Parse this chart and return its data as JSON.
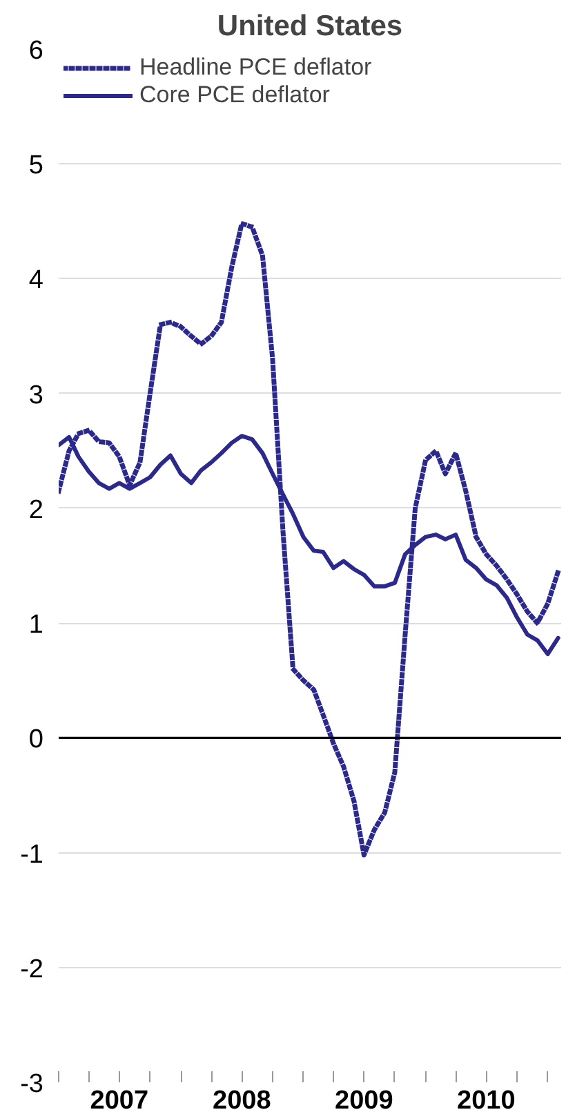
{
  "chart_data": {
    "type": "line",
    "title": "United States",
    "x": [
      "2007-01",
      "2007-02",
      "2007-03",
      "2007-04",
      "2007-05",
      "2007-06",
      "2007-07",
      "2007-08",
      "2007-09",
      "2007-10",
      "2007-11",
      "2007-12",
      "2008-01",
      "2008-02",
      "2008-03",
      "2008-04",
      "2008-05",
      "2008-06",
      "2008-07",
      "2008-08",
      "2008-09",
      "2008-10",
      "2008-11",
      "2008-12",
      "2009-01",
      "2009-02",
      "2009-03",
      "2009-04",
      "2009-05",
      "2009-06",
      "2009-07",
      "2009-08",
      "2009-09",
      "2009-10",
      "2009-11",
      "2009-12",
      "2010-01",
      "2010-02",
      "2010-03",
      "2010-04",
      "2010-05",
      "2010-06",
      "2010-07",
      "2010-08",
      "2010-09",
      "2010-10",
      "2010-11",
      "2010-12",
      "2011-01",
      "2011-02"
    ],
    "series": [
      {
        "name": "Headline PCE deflator",
        "color": "#2b2a8c",
        "line_style": "dotted",
        "values": [
          2.15,
          2.5,
          2.65,
          2.68,
          2.58,
          2.57,
          2.45,
          2.2,
          2.4,
          3.0,
          3.6,
          3.62,
          3.58,
          3.5,
          3.43,
          3.5,
          3.62,
          4.1,
          4.48,
          4.45,
          4.2,
          3.3,
          1.8,
          0.6,
          0.5,
          0.42,
          0.2,
          -0.05,
          -0.25,
          -0.55,
          -1.02,
          -0.8,
          -0.65,
          -0.3,
          0.9,
          2.0,
          2.42,
          2.5,
          2.3,
          2.48,
          2.15,
          1.75,
          1.6,
          1.5,
          1.38,
          1.25,
          1.1,
          1.0,
          1.17,
          1.45
        ]
      },
      {
        "name": "Core PCE deflator",
        "color": "#2b2a8c",
        "line_style": "solid",
        "values": [
          2.55,
          2.62,
          2.45,
          2.32,
          2.22,
          2.17,
          2.22,
          2.17,
          2.22,
          2.27,
          2.38,
          2.46,
          2.3,
          2.22,
          2.33,
          2.4,
          2.48,
          2.57,
          2.63,
          2.6,
          2.48,
          2.3,
          2.12,
          1.95,
          1.75,
          1.63,
          1.62,
          1.48,
          1.54,
          1.47,
          1.42,
          1.32,
          1.32,
          1.35,
          1.6,
          1.68,
          1.75,
          1.77,
          1.73,
          1.77,
          1.55,
          1.48,
          1.38,
          1.33,
          1.22,
          1.05,
          0.9,
          0.85,
          0.73,
          0.87
        ]
      }
    ],
    "xlim": [
      "2007-01-01",
      "2011-02-10"
    ],
    "xticks": [
      {
        "value": "2007-01-01",
        "label": null
      },
      {
        "value": "2007-04-01",
        "label": null
      },
      {
        "value": "2007-07-01",
        "label": "2007"
      },
      {
        "value": "2007-10-01",
        "label": null
      },
      {
        "value": "2008-01-01",
        "label": null
      },
      {
        "value": "2008-04-01",
        "label": null
      },
      {
        "value": "2008-07-01",
        "label": "2008"
      },
      {
        "value": "2008-10-01",
        "label": null
      },
      {
        "value": "2009-01-01",
        "label": null
      },
      {
        "value": "2009-04-01",
        "label": null
      },
      {
        "value": "2009-07-01",
        "label": "2009"
      },
      {
        "value": "2009-10-01",
        "label": null
      },
      {
        "value": "2010-01-01",
        "label": null
      },
      {
        "value": "2010-04-01",
        "label": null
      },
      {
        "value": "2010-07-01",
        "label": "2010"
      },
      {
        "value": "2010-10-01",
        "label": null
      },
      {
        "value": "2011-01-01",
        "label": null
      }
    ],
    "ylim": [
      -3,
      6
    ],
    "yticks": [
      -3,
      -2,
      -1,
      0,
      1,
      2,
      3,
      4,
      5,
      6
    ],
    "grid": "y",
    "legend": "top left",
    "ref_lines": [
      {
        "axis": "y",
        "value": 0,
        "color": "#000000"
      }
    ]
  }
}
